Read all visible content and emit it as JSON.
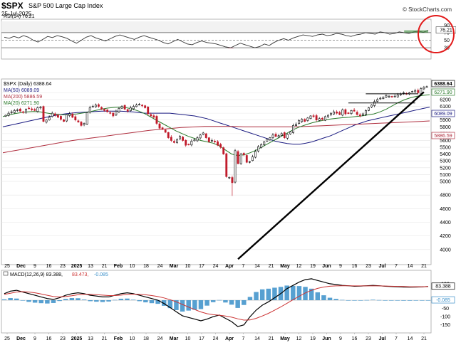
{
  "header": {
    "ticker": "$SPX",
    "company": "S&P 500 Large Cap Index",
    "date": "25-Jul-2025",
    "credit": "© StockCharts.com"
  },
  "chart_data": [
    {
      "type": "line",
      "name": "rsi",
      "title": "RSI(14)",
      "last_value": "76.21",
      "legend": "RSI(14) 76.21",
      "ylim": [
        0,
        100
      ],
      "yticks": [
        30,
        50,
        70,
        90
      ],
      "reference_lines": [
        70,
        50,
        30
      ],
      "annotation": "red circle around latest RSI value",
      "series": [
        {
          "name": "RSI(14)",
          "color": "#333333",
          "values": [
            58,
            55,
            60,
            56,
            62,
            58,
            50,
            45,
            52,
            60,
            57,
            62,
            59,
            55,
            48,
            42,
            50,
            58,
            62,
            56,
            52,
            48,
            54,
            60,
            64,
            60,
            56,
            52,
            58,
            62,
            58,
            54,
            50,
            44,
            40,
            46,
            52,
            46,
            40,
            38,
            44,
            48,
            44,
            42,
            40,
            36,
            32,
            30,
            36,
            42,
            38,
            34,
            30,
            33,
            40,
            36,
            44,
            50,
            54,
            50,
            56,
            60,
            64,
            62,
            60,
            64,
            66,
            62,
            64,
            68,
            66,
            62,
            60,
            64,
            66,
            70,
            68,
            66,
            72,
            70,
            66,
            68,
            72,
            70,
            68,
            72,
            74,
            71,
            76.21
          ]
        }
      ]
    },
    {
      "type": "candlestick",
      "name": "price",
      "title": "$SPX (Daily)",
      "last_price": "6388.64",
      "ylim": [
        3800,
        6450
      ],
      "yticks": [
        4000,
        4200,
        4400,
        4600,
        4800,
        5000,
        5100,
        5200,
        5300,
        5400,
        5500,
        5600,
        5700,
        5800,
        5900,
        6000,
        6100,
        6200,
        6300
      ],
      "price_labels": [
        {
          "text": "6388.64",
          "value": 6388.64,
          "color": "#000000"
        },
        {
          "text": "6271.90",
          "value": 6271.9,
          "color": "#2a7a2a"
        },
        {
          "text": "6089.09",
          "value": 6089.09,
          "color": "#1a1a80"
        },
        {
          "text": "5886.59",
          "value": 5886.59,
          "color": "#b03040"
        }
      ],
      "legend": [
        {
          "label": "$SPX (Daily) 6388.64",
          "color": "#000000"
        },
        {
          "label": "MA(50) 6089.09",
          "color": "#1a1a80"
        },
        {
          "label": "MA(200) 5886.59",
          "color": "#b03040"
        },
        {
          "label": "MA(20) 6271.90",
          "color": "#2a7a2a"
        }
      ],
      "x_labels": [
        "25",
        "Dec",
        "9",
        "16",
        "23",
        "2025",
        "13",
        "21",
        "Feb",
        "10",
        "18",
        "24",
        "Mar",
        "10",
        "17",
        "24",
        "Apr",
        "7",
        "14",
        "21",
        "May",
        "12",
        "19",
        "Jun",
        "9",
        "16",
        "23",
        "Jul",
        "7",
        "14",
        "21"
      ],
      "bold_x_labels": [
        "Dec",
        "2025",
        "Feb",
        "Mar",
        "Apr",
        "May",
        "Jun",
        "Jul"
      ],
      "closes": [
        5970,
        6000,
        6020,
        6040,
        6050,
        6030,
        6010,
        6060,
        6070,
        6050,
        6040,
        6080,
        6090,
        5880,
        5900,
        5940,
        6000,
        5970,
        5940,
        5910,
        5880,
        5980,
        5990,
        5940,
        5900,
        5870,
        5820,
        5850,
        6010,
        6080,
        6100,
        6120,
        6100,
        6060,
        6040,
        6020,
        6000,
        5960,
        6030,
        6070,
        6100,
        6060,
        6030,
        6080,
        6100,
        6120,
        6130,
        6110,
        6080,
        5990,
        5960,
        5940,
        5850,
        5780,
        5770,
        5720,
        5640,
        5600,
        5570,
        5610,
        5660,
        5600,
        5530,
        5540,
        5590,
        5610,
        5640,
        5680,
        5710,
        5640,
        5580,
        5600,
        5580,
        5530,
        5500,
        5400,
        5070,
        5060,
        4980,
        5450,
        5260,
        5400,
        5390,
        5280,
        5290,
        5360,
        5440,
        5510,
        5540,
        5580,
        5620,
        5640,
        5680,
        5660,
        5670,
        5700,
        5640,
        5690,
        5730,
        5820,
        5840,
        5890,
        5910,
        5880,
        5930,
        5960,
        5950,
        5900,
        5920,
        5910,
        5950,
        5970,
        6000,
        6020,
        6000,
        5980,
        6050,
        5990,
        6000,
        6040,
        6030,
        5980,
        5960,
        5990,
        6040,
        6080,
        6120,
        6170,
        6200,
        6220,
        6230,
        6260,
        6250,
        6240,
        6250,
        6270,
        6280,
        6300,
        6280,
        6300,
        6320,
        6330,
        6300,
        6360,
        6380,
        6389
      ],
      "series": [
        {
          "name": "MA(50)",
          "color": "#1a1a80",
          "values": [
            5800,
            5820,
            5840,
            5860,
            5880,
            5900,
            5920,
            5940,
            5960,
            5975,
            5990,
            6000,
            6010,
            6015,
            6020,
            6025,
            6030,
            6030,
            6030,
            6030,
            6025,
            6020,
            6010,
            6000,
            6000,
            6000,
            6000,
            6000,
            5990,
            5980,
            5970,
            5960,
            5940,
            5920,
            5890,
            5860,
            5830,
            5800,
            5770,
            5740,
            5710,
            5680,
            5650,
            5620,
            5590,
            5570,
            5555,
            5545,
            5545,
            5560,
            5580,
            5610,
            5640,
            5670,
            5710,
            5750,
            5790,
            5830,
            5860,
            5890,
            5910,
            5930,
            5950,
            5970,
            5990,
            6010,
            6030,
            6050,
            6070,
            6089
          ]
        },
        {
          "name": "MA(200)",
          "color": "#b03040",
          "values": [
            5420,
            5440,
            5460,
            5480,
            5500,
            5520,
            5540,
            5560,
            5580,
            5600,
            5615,
            5630,
            5645,
            5660,
            5675,
            5690,
            5705,
            5720,
            5735,
            5750,
            5760,
            5770,
            5780,
            5790,
            5795,
            5800,
            5805,
            5805,
            5805,
            5805,
            5805,
            5800,
            5800,
            5800,
            5800,
            5800,
            5800,
            5800,
            5800,
            5805,
            5810,
            5815,
            5820,
            5825,
            5830,
            5835,
            5840,
            5845,
            5850,
            5855,
            5860,
            5865,
            5870,
            5875,
            5880,
            5886.59
          ]
        },
        {
          "name": "MA(20)",
          "color": "#2a7a2a",
          "values": [
            5950,
            5975,
            5995,
            6010,
            6020,
            6025,
            6020,
            6005,
            5990,
            5980,
            5975,
            5980,
            5990,
            6005,
            6020,
            6040,
            6060,
            6075,
            6085,
            6090,
            6080,
            6060,
            6030,
            5990,
            5940,
            5890,
            5840,
            5790,
            5740,
            5700,
            5660,
            5630,
            5600,
            5580,
            5560,
            5520,
            5460,
            5400,
            5380,
            5390,
            5420,
            5460,
            5510,
            5560,
            5610,
            5660,
            5710,
            5760,
            5800,
            5830,
            5860,
            5880,
            5900,
            5915,
            5925,
            5935,
            5940,
            5950,
            5960,
            5975,
            5990,
            6020,
            6060,
            6110,
            6160,
            6200,
            6230,
            6250,
            6262,
            6271.9
          ]
        }
      ],
      "support_lines": [
        "rising trendline from April low",
        "horizontal resistance near 6150",
        "horizontal resistance near 6280"
      ]
    },
    {
      "type": "line",
      "name": "macd",
      "title": "MACD(12,26,9)",
      "legend_parts": [
        {
          "text": "MACD(12,26,9) 83.388,",
          "color": "#000000"
        },
        {
          "text": "83.473,",
          "color": "#cc3333"
        },
        {
          "text": "-0.085",
          "color": "#3a8fc9"
        }
      ],
      "ylim": [
        -190,
        160
      ],
      "yticks": [
        100,
        0,
        -50,
        -100,
        -150
      ],
      "price_labels": [
        {
          "text": "83.388",
          "value": 83.388
        },
        {
          "text": "-0.085",
          "value": -0.085
        }
      ],
      "series": [
        {
          "name": "MACD",
          "color": "#000000",
          "values": [
            40,
            55,
            60,
            50,
            40,
            30,
            20,
            10,
            5,
            15,
            30,
            40,
            45,
            40,
            30,
            25,
            20,
            20,
            30,
            40,
            45,
            40,
            30,
            20,
            10,
            0,
            -20,
            -45,
            -70,
            -95,
            -105,
            -115,
            -125,
            -115,
            -100,
            -90,
            -110,
            -130,
            -160,
            -150,
            -100,
            -60,
            -30,
            -10,
            15,
            40,
            70,
            90,
            110,
            125,
            130,
            120,
            110,
            100,
            95,
            90,
            88,
            85,
            86,
            88,
            90,
            88,
            85,
            83,
            82,
            80,
            79,
            80,
            81,
            83.388
          ]
        },
        {
          "name": "Signal",
          "color": "#cc3333",
          "values": [
            35,
            42,
            50,
            52,
            50,
            45,
            38,
            30,
            22,
            20,
            22,
            27,
            33,
            36,
            36,
            34,
            31,
            28,
            28,
            31,
            35,
            37,
            36,
            33,
            28,
            22,
            14,
            3,
            -10,
            -26,
            -42,
            -57,
            -71,
            -82,
            -88,
            -91,
            -96,
            -103,
            -113,
            -121,
            -120,
            -110,
            -96,
            -80,
            -61,
            -41,
            -19,
            3,
            24,
            44,
            60,
            72,
            80,
            85,
            87,
            88,
            88,
            87,
            87,
            87,
            87,
            87,
            86,
            85,
            84,
            83,
            82,
            82,
            82,
            83.473
          ]
        },
        {
          "name": "Histogram",
          "color": "#3a8fc9",
          "values": [
            5,
            13,
            10,
            -2,
            -10,
            -15,
            -18,
            -20,
            -17,
            -5,
            8,
            13,
            12,
            4,
            -6,
            -9,
            -11,
            -8,
            2,
            9,
            10,
            3,
            -6,
            -13,
            -18,
            -22,
            -34,
            -48,
            -60,
            -69,
            -63,
            -58,
            -54,
            -33,
            -12,
            1,
            -14,
            -27,
            -47,
            -29,
            20,
            50,
            66,
            70,
            76,
            81,
            89,
            87,
            86,
            81,
            70,
            48,
            30,
            15,
            8,
            2,
            0,
            -2,
            -1,
            1,
            3,
            1,
            -1,
            -2,
            -2,
            -3,
            -3,
            -2,
            -1,
            -0.085
          ]
        }
      ]
    }
  ]
}
